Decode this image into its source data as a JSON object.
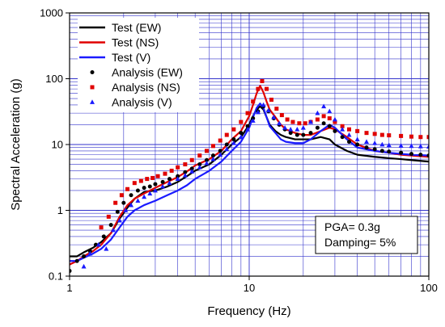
{
  "chart_data": {
    "type": "line",
    "title": "",
    "xlabel": "Frequency (Hz)",
    "ylabel": "Spectral Acceleration (g)",
    "xscale": "log",
    "yscale": "log",
    "xlim": [
      1,
      100
    ],
    "ylim": [
      0.1,
      1000
    ],
    "xticks": [
      1,
      10,
      100
    ],
    "xtick_labels": [
      "1",
      "10",
      "100"
    ],
    "yticks": [
      0.1,
      1,
      10,
      100,
      1000
    ],
    "ytick_labels": [
      "0.1",
      "1",
      "10",
      "100",
      "1000"
    ],
    "grid": true,
    "grid_color": "#3333cc",
    "legend_position": "top-left",
    "annotation": {
      "lines": [
        "PGA= 0.3g",
        "Damping= 5%"
      ],
      "position": "bottom-right"
    },
    "series": [
      {
        "name": "Test (EW)",
        "kind": "line",
        "color": "#000000",
        "x": [
          1,
          1.1,
          1.2,
          1.35,
          1.5,
          1.7,
          1.9,
          2.1,
          2.3,
          2.6,
          3,
          3.5,
          4,
          4.5,
          5,
          6,
          7,
          8,
          9,
          10,
          10.5,
          11,
          11.5,
          12,
          12.5,
          13,
          14,
          15,
          16,
          18,
          20,
          22,
          25,
          28,
          30,
          35,
          40,
          50,
          60,
          70,
          80,
          100
        ],
        "y": [
          0.2,
          0.2,
          0.23,
          0.27,
          0.33,
          0.45,
          0.75,
          1.1,
          1.5,
          1.9,
          2.0,
          2.3,
          2.7,
          3.3,
          4.0,
          5.0,
          7.0,
          10,
          13,
          20,
          27,
          34,
          38,
          34,
          26,
          20,
          16,
          14,
          13,
          12,
          12,
          12,
          13,
          12,
          10,
          8,
          7,
          6.5,
          6.2,
          6.0,
          5.8,
          5.5
        ]
      },
      {
        "name": "Test (NS)",
        "kind": "line",
        "color": "#e00000",
        "x": [
          1,
          1.1,
          1.2,
          1.35,
          1.5,
          1.7,
          1.9,
          2.1,
          2.3,
          2.6,
          3,
          3.5,
          4,
          4.5,
          5,
          6,
          7,
          8,
          9,
          10,
          10.5,
          11,
          11.5,
          12,
          12.5,
          13,
          14,
          15,
          16,
          18,
          20,
          22,
          25,
          28,
          30,
          35,
          40,
          50,
          60,
          70,
          80,
          100
        ],
        "y": [
          0.15,
          0.17,
          0.2,
          0.24,
          0.3,
          0.45,
          0.8,
          1.2,
          1.5,
          1.8,
          2.2,
          2.7,
          3.2,
          3.9,
          4.8,
          6.0,
          8.0,
          12,
          16,
          27,
          40,
          60,
          78,
          62,
          45,
          34,
          26,
          20,
          17,
          15,
          14,
          14,
          16,
          18,
          17,
          13,
          10,
          8,
          7.5,
          7.0,
          6.8,
          6.5
        ]
      },
      {
        "name": "Test (V)",
        "kind": "line",
        "color": "#1a1aff",
        "x": [
          1,
          1.1,
          1.2,
          1.35,
          1.5,
          1.7,
          1.9,
          2.1,
          2.3,
          2.6,
          3,
          3.5,
          4,
          4.5,
          5,
          6,
          7,
          8,
          9,
          10,
          10.5,
          11,
          11.5,
          12,
          12.5,
          13,
          14,
          15,
          16,
          18,
          20,
          22,
          25,
          28,
          30,
          35,
          40,
          50,
          60,
          70,
          80,
          100
        ],
        "y": [
          0.17,
          0.17,
          0.19,
          0.22,
          0.26,
          0.36,
          0.55,
          0.8,
          1.0,
          1.2,
          1.4,
          1.7,
          2.0,
          2.4,
          3.0,
          4.0,
          5.5,
          8.0,
          11,
          18,
          26,
          36,
          42,
          36,
          26,
          19,
          15,
          12,
          11,
          10.5,
          10.5,
          12,
          16,
          20,
          18,
          12,
          9,
          8,
          7.5,
          7.2,
          7.0,
          6.8
        ]
      },
      {
        "name": "Analysis (EW)",
        "kind": "marker",
        "marker": "circle",
        "color": "#000000",
        "x": [
          1,
          1.1,
          1.2,
          1.3,
          1.4,
          1.55,
          1.7,
          1.85,
          2.0,
          2.2,
          2.4,
          2.6,
          2.8,
          3.0,
          3.3,
          3.6,
          4.0,
          4.4,
          4.8,
          5.3,
          5.8,
          6.3,
          6.9,
          7.5,
          8.2,
          9.0,
          9.8,
          10.5,
          11.2,
          12.0,
          12.8,
          13.7,
          14.7,
          15.8,
          17,
          18.5,
          20,
          22,
          24,
          26,
          28,
          30,
          33,
          36,
          40,
          45,
          50,
          55,
          60,
          70,
          80,
          90,
          100
        ],
        "y": [
          0.12,
          0.17,
          0.2,
          0.24,
          0.3,
          0.4,
          0.6,
          0.95,
          1.3,
          1.7,
          2.0,
          2.2,
          2.3,
          2.5,
          2.7,
          3.0,
          3.3,
          3.8,
          4.3,
          5.0,
          5.8,
          6.8,
          8.0,
          10,
          12,
          15,
          19,
          25,
          32,
          38,
          32,
          25,
          20,
          17,
          15,
          14,
          14,
          15,
          18,
          21,
          19,
          16,
          13,
          11,
          10,
          9,
          8.5,
          8,
          7.8,
          7.5,
          7.2,
          7.0,
          6.8
        ]
      },
      {
        "name": "Analysis (NS)",
        "kind": "marker",
        "marker": "square",
        "color": "#e00000",
        "x": [
          1.5,
          1.65,
          1.8,
          1.95,
          2.1,
          2.3,
          2.5,
          2.7,
          2.9,
          3.1,
          3.4,
          3.7,
          4.0,
          4.4,
          4.8,
          5.3,
          5.8,
          6.3,
          6.9,
          7.5,
          8.2,
          9.0,
          9.8,
          10.5,
          11.2,
          11.8,
          12.5,
          13.3,
          14.2,
          15.2,
          16.3,
          17.5,
          19,
          20.5,
          22,
          24,
          26,
          28,
          30,
          33,
          36,
          40,
          45,
          50,
          55,
          60,
          70,
          80,
          90,
          100
        ],
        "y": [
          0.55,
          0.8,
          1.3,
          1.7,
          2.1,
          2.6,
          2.8,
          3.0,
          3.1,
          3.3,
          3.6,
          4.0,
          4.5,
          5.0,
          5.8,
          6.8,
          8.0,
          9.5,
          11.5,
          14,
          17,
          22,
          30,
          45,
          70,
          92,
          70,
          48,
          35,
          28,
          24,
          22,
          21,
          21,
          22,
          24,
          27,
          25,
          22,
          19,
          17,
          16,
          15,
          14.5,
          14,
          13.8,
          13.5,
          13.2,
          13,
          13
        ]
      },
      {
        "name": "Analysis (V)",
        "kind": "marker",
        "marker": "triangle",
        "color": "#1a1aff",
        "x": [
          1.2,
          1.3,
          1.45,
          1.6,
          1.75,
          1.9,
          2.05,
          2.2,
          2.4,
          2.6,
          2.8,
          3.0,
          3.3,
          3.6,
          4.0,
          4.4,
          4.8,
          5.3,
          5.8,
          6.3,
          6.9,
          7.5,
          8.2,
          9.0,
          9.8,
          10.5,
          11.2,
          12.0,
          12.8,
          13.7,
          14.7,
          15.8,
          17,
          18.5,
          20,
          22,
          24,
          26,
          28,
          30,
          33,
          36,
          40,
          45,
          50,
          55,
          60,
          70,
          80,
          90,
          100
        ],
        "y": [
          0.14,
          0.22,
          0.3,
          0.26,
          0.5,
          0.7,
          1.0,
          1.2,
          1.4,
          1.6,
          1.8,
          2.0,
          2.3,
          2.6,
          3.0,
          3.4,
          3.9,
          4.5,
          5.2,
          6.0,
          7.0,
          8.5,
          10.5,
          13,
          17,
          23,
          31,
          40,
          33,
          26,
          21,
          18,
          17,
          17,
          18,
          22,
          30,
          38,
          32,
          24,
          17,
          14,
          12,
          11,
          10.5,
          10,
          9.8,
          9.6,
          9.5,
          9.4,
          9.3
        ]
      }
    ]
  }
}
